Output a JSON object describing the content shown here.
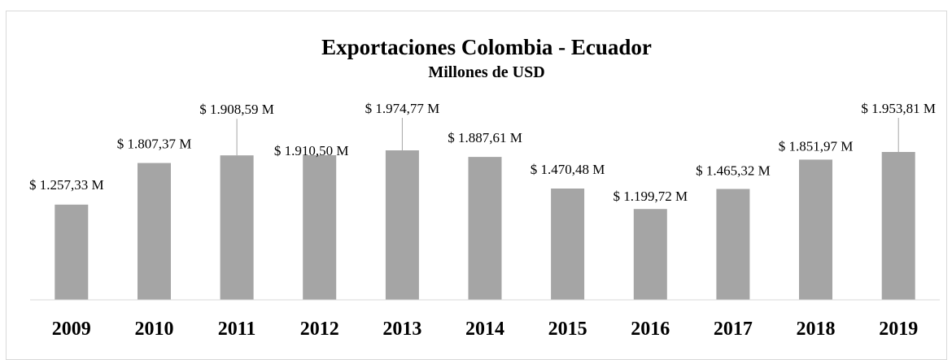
{
  "chart_data": {
    "type": "bar",
    "title": "Exportaciones Colombia - Ecuador",
    "subtitle": "Millones de USD",
    "categories": [
      "2009",
      "2010",
      "2011",
      "2012",
      "2013",
      "2014",
      "2015",
      "2016",
      "2017",
      "2018",
      "2019"
    ],
    "values": [
      1257.33,
      1807.37,
      1908.59,
      1910.5,
      1974.77,
      1887.61,
      1470.48,
      1199.72,
      1465.32,
      1851.97,
      1953.81
    ],
    "data_labels": [
      "$ 1.257,33 M",
      "$ 1.807,37 M",
      "$ 1.908,59 M",
      "$ 1.910,50 M",
      "$ 1.974,77 M",
      "$ 1.887,61 M",
      "$ 1.470,48 M",
      "$ 1.199,72 M",
      "$ 1.465,32 M",
      "$ 1.851,97 M",
      "$ 1.953,81 M"
    ],
    "ylim": [
      0,
      2200
    ],
    "grid": false,
    "legend": "none",
    "bar_color": "#a5a5a5",
    "axis_color": "#d9d9d9"
  }
}
